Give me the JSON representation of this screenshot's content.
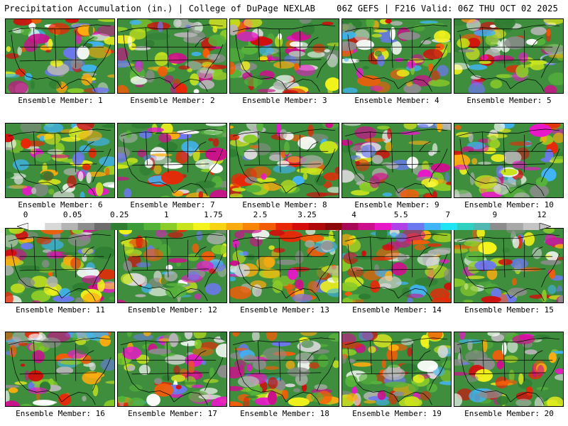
{
  "header": {
    "title": "Precipitation Accumulation (in.) | College of DuPage NEXLAB",
    "run_info": "06Z GEFS | F216 Valid: 06Z THU OCT 02 2025"
  },
  "members": [
    "Ensemble Member: 1",
    "Ensemble Member: 2",
    "Ensemble Member: 3",
    "Ensemble Member: 4",
    "Ensemble Member: 5",
    "Ensemble Member: 6",
    "Ensemble Member: 7",
    "Ensemble Member: 8",
    "Ensemble Member: 9",
    "Ensemble Member: 10",
    "Ensemble Member: 11",
    "Ensemble Member: 12",
    "Ensemble Member: 13",
    "Ensemble Member: 14",
    "Ensemble Member: 15",
    "Ensemble Member: 16",
    "Ensemble Member: 17",
    "Ensemble Member: 18",
    "Ensemble Member: 19",
    "Ensemble Member: 20"
  ],
  "colorbar": {
    "labels": [
      "0",
      "0.05",
      "0.25",
      "1",
      "1.75",
      "2.5",
      "3.25",
      "4",
      "5.5",
      "7",
      "9",
      "12"
    ],
    "colors": [
      "#ffffff",
      "#d8d8d8",
      "#b4b4b4",
      "#8c8c8c",
      "#6c6c6c",
      "#2e7d32",
      "#3a9a3a",
      "#56b33a",
      "#8ccc28",
      "#c8e41c",
      "#f4f41c",
      "#f8d414",
      "#fcac10",
      "#f88408",
      "#f45c08",
      "#e82808",
      "#d40c0c",
      "#b00808",
      "#8c0608",
      "#a80858",
      "#cc108c",
      "#e818c8",
      "#b040e8",
      "#6c78f0",
      "#40b4f4",
      "#20e4f4",
      "#30d0c0",
      "#50b8b0",
      "#8c8c8c",
      "#a8a8a8",
      "#c4c4c4"
    ]
  },
  "map_palette": {
    "base": "#3e8e3e",
    "colors": [
      "#2e7d32",
      "#56b33a",
      "#8ccc28",
      "#c8e41c",
      "#f4f41c",
      "#fcac10",
      "#f45c08",
      "#e82808",
      "#d40c0c",
      "#cc108c",
      "#e818c8",
      "#6c78f0",
      "#40b4f4",
      "#d8d8d8",
      "#b4b4b4",
      "#8c8c8c",
      "#ffffff"
    ]
  }
}
